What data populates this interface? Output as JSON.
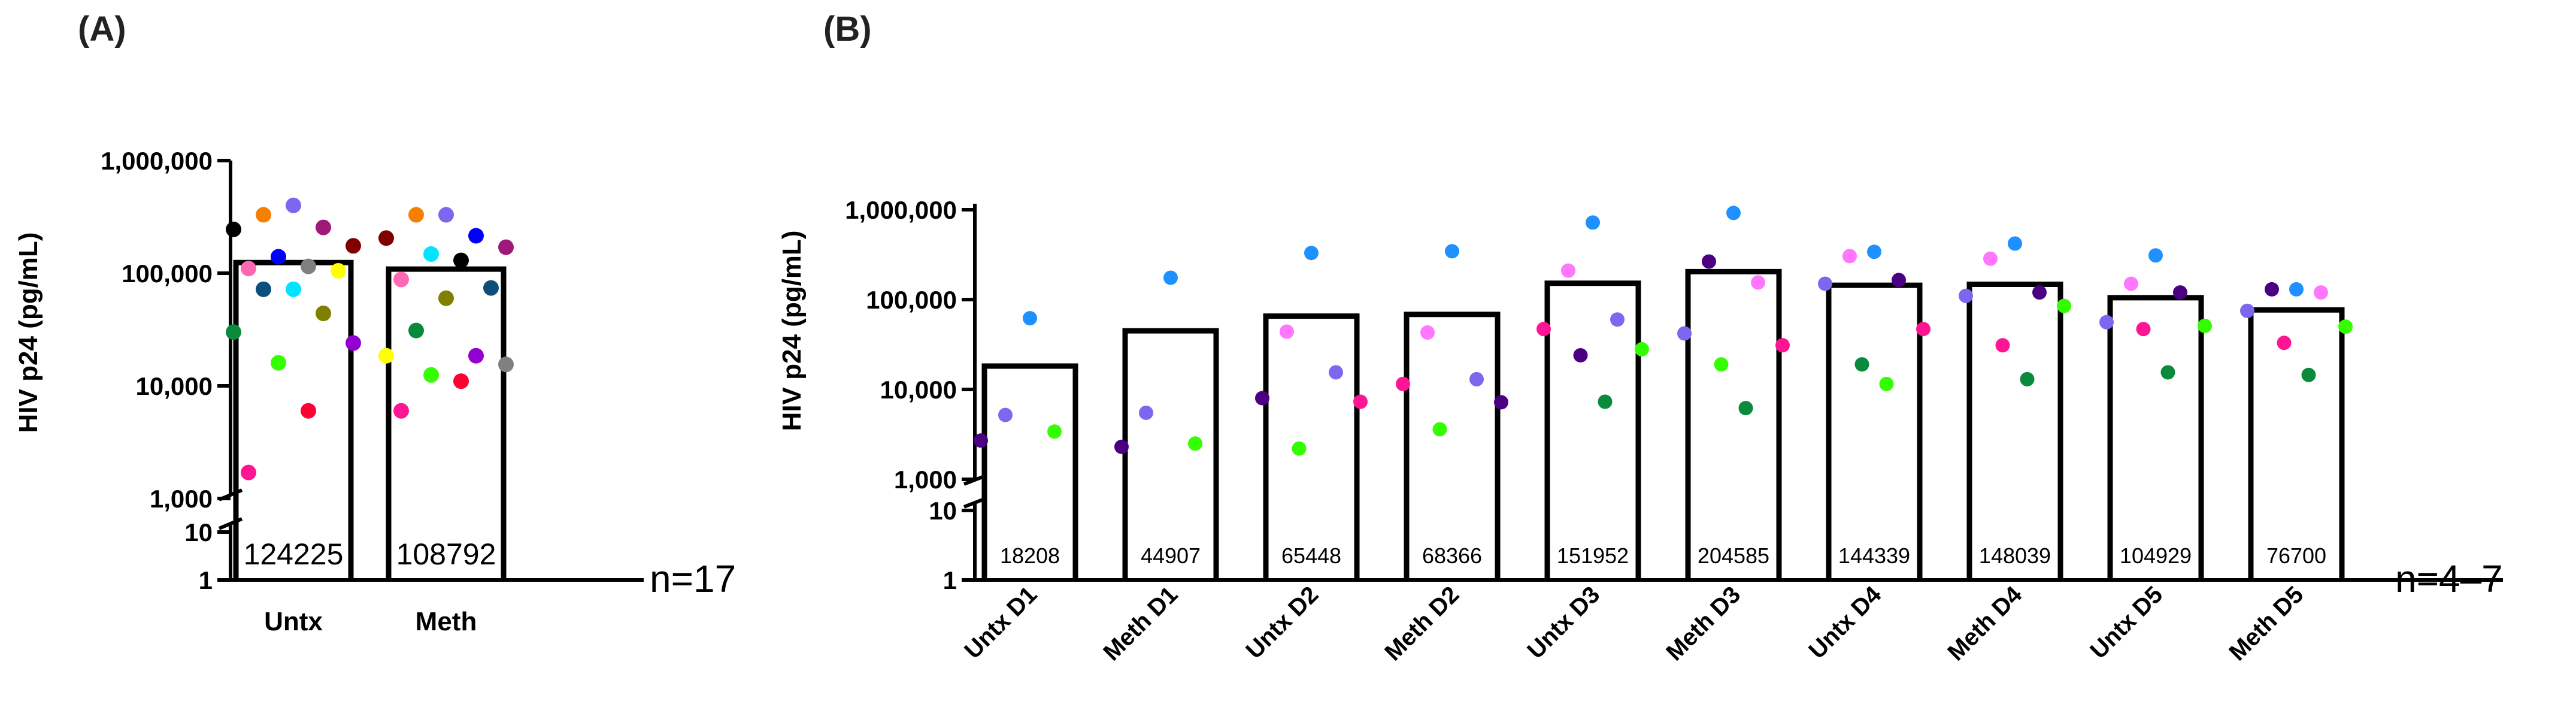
{
  "chart_data": [
    {
      "panel": "(A)",
      "type": "bar",
      "ylabel": "HIV p24 (pg/mL)",
      "yscale": "log",
      "ylim": [
        1000,
        1000000
      ],
      "yticks": [
        1000,
        10000,
        100000,
        1000000
      ],
      "ytick_labels": [
        "1,000",
        "10,000",
        "100,000",
        "1,000,000"
      ],
      "lower_ticks": [
        1,
        10
      ],
      "lower_tick_labels": [
        "1",
        "10"
      ],
      "axis_break": true,
      "categories": [
        "Untx",
        "Meth"
      ],
      "values": [
        124225,
        108792
      ],
      "value_labels": [
        "124225",
        "108792"
      ],
      "n_label": "n=17",
      "points": [
        [
          {
            "value": 330000,
            "color": "#f77f00"
          },
          {
            "value": 400000,
            "color": "#7b68ee"
          },
          {
            "value": 255000,
            "color": "#a0187a"
          },
          {
            "value": 245000,
            "color": "#000000"
          },
          {
            "value": 175000,
            "color": "#800000"
          },
          {
            "value": 140000,
            "color": "#0000ff"
          },
          {
            "value": 115000,
            "color": "#808080"
          },
          {
            "value": 110000,
            "color": "#ff69b4"
          },
          {
            "value": 105000,
            "color": "#ffff00"
          },
          {
            "value": 72000,
            "color": "#00e5ff"
          },
          {
            "value": 72000,
            "color": "#0b4f7a"
          },
          {
            "value": 44000,
            "color": "#808000"
          },
          {
            "value": 30000,
            "color": "#0a8a3c"
          },
          {
            "value": 24000,
            "color": "#9400d3"
          },
          {
            "value": 16000,
            "color": "#33ff00"
          },
          {
            "value": 6000,
            "color": "#ff0033"
          },
          {
            "value": 1700,
            "color": "#ff1493"
          }
        ],
        [
          {
            "value": 330000,
            "color": "#7b68ee"
          },
          {
            "value": 330000,
            "color": "#f77f00"
          },
          {
            "value": 215000,
            "color": "#0000ff"
          },
          {
            "value": 205000,
            "color": "#800000"
          },
          {
            "value": 170000,
            "color": "#a0187a"
          },
          {
            "value": 148000,
            "color": "#00e5ff"
          },
          {
            "value": 130000,
            "color": "#000000"
          },
          {
            "value": 88000,
            "color": "#ff69b4"
          },
          {
            "value": 74000,
            "color": "#0b4f7a"
          },
          {
            "value": 60000,
            "color": "#808000"
          },
          {
            "value": 31000,
            "color": "#0a8a3c"
          },
          {
            "value": 18500,
            "color": "#9400d3"
          },
          {
            "value": 18500,
            "color": "#ffff00"
          },
          {
            "value": 15500,
            "color": "#808080"
          },
          {
            "value": 12500,
            "color": "#33ff00"
          },
          {
            "value": 11000,
            "color": "#ff0033"
          },
          {
            "value": 6000,
            "color": "#ff1493"
          }
        ]
      ]
    },
    {
      "panel": "(B)",
      "type": "bar",
      "ylabel": "HIV p24 (pg/mL)",
      "yscale": "log",
      "ylim": [
        1000,
        1000000
      ],
      "yticks": [
        1000,
        10000,
        100000,
        1000000
      ],
      "ytick_labels": [
        "1,000",
        "10,000",
        "100,000",
        "1,000,000"
      ],
      "lower_ticks": [
        1,
        10
      ],
      "lower_tick_labels": [
        "1",
        "10"
      ],
      "axis_break": true,
      "categories": [
        "Untx D1",
        "Meth D1",
        "Untx D2",
        "Meth D2",
        "Untx D3",
        "Meth D3",
        "Untx D4",
        "Meth D4",
        "Untx D5",
        "Meth D5"
      ],
      "values": [
        18208,
        44907,
        65448,
        68366,
        151952,
        204585,
        144339,
        148039,
        104929,
        76700
      ],
      "value_labels": [
        "18208",
        "44907",
        "65448",
        "68366",
        "151952",
        "204585",
        "144339",
        "148039",
        "104929",
        "76700"
      ],
      "n_label": "n=4–7",
      "points": [
        [
          {
            "value": 62000,
            "color": "#1e90ff"
          },
          {
            "value": 5200,
            "color": "#7b68ee"
          },
          {
            "value": 3400,
            "color": "#33ff00"
          },
          {
            "value": 2700,
            "color": "#4b0082"
          }
        ],
        [
          {
            "value": 175000,
            "color": "#1e90ff"
          },
          {
            "value": 5500,
            "color": "#7b68ee"
          },
          {
            "value": 2500,
            "color": "#33ff00"
          },
          {
            "value": 2300,
            "color": "#4b0082"
          }
        ],
        [
          {
            "value": 330000,
            "color": "#1e90ff"
          },
          {
            "value": 44000,
            "color": "#ff77ff"
          },
          {
            "value": 15500,
            "color": "#7b68ee"
          },
          {
            "value": 8000,
            "color": "#4b0082"
          },
          {
            "value": 7300,
            "color": "#ff1493"
          },
          {
            "value": 2200,
            "color": "#33ff00"
          }
        ],
        [
          {
            "value": 345000,
            "color": "#1e90ff"
          },
          {
            "value": 43000,
            "color": "#ff77ff"
          },
          {
            "value": 13000,
            "color": "#7b68ee"
          },
          {
            "value": 11500,
            "color": "#ff1493"
          },
          {
            "value": 7200,
            "color": "#4b0082"
          },
          {
            "value": 3600,
            "color": "#33ff00"
          }
        ],
        [
          {
            "value": 720000,
            "color": "#1e90ff"
          },
          {
            "value": 210000,
            "color": "#ff77ff"
          },
          {
            "value": 60000,
            "color": "#7b68ee"
          },
          {
            "value": 47000,
            "color": "#ff1493"
          },
          {
            "value": 28000,
            "color": "#33ff00"
          },
          {
            "value": 24000,
            "color": "#4b0082"
          },
          {
            "value": 7300,
            "color": "#0a8a3c"
          }
        ],
        [
          {
            "value": 920000,
            "color": "#1e90ff"
          },
          {
            "value": 265000,
            "color": "#4b0082"
          },
          {
            "value": 155000,
            "color": "#ff77ff"
          },
          {
            "value": 42000,
            "color": "#7b68ee"
          },
          {
            "value": 31000,
            "color": "#ff1493"
          },
          {
            "value": 19000,
            "color": "#33ff00"
          },
          {
            "value": 6200,
            "color": "#0a8a3c"
          }
        ],
        [
          {
            "value": 340000,
            "color": "#1e90ff"
          },
          {
            "value": 305000,
            "color": "#ff77ff"
          },
          {
            "value": 165000,
            "color": "#4b0082"
          },
          {
            "value": 150000,
            "color": "#7b68ee"
          },
          {
            "value": 47000,
            "color": "#ff1493"
          },
          {
            "value": 19000,
            "color": "#0a8a3c"
          },
          {
            "value": 11500,
            "color": "#33ff00"
          }
        ],
        [
          {
            "value": 420000,
            "color": "#1e90ff"
          },
          {
            "value": 285000,
            "color": "#ff77ff"
          },
          {
            "value": 120000,
            "color": "#4b0082"
          },
          {
            "value": 110000,
            "color": "#7b68ee"
          },
          {
            "value": 85000,
            "color": "#33ff00"
          },
          {
            "value": 31000,
            "color": "#ff1493"
          },
          {
            "value": 13000,
            "color": "#0a8a3c"
          }
        ],
        [
          {
            "value": 310000,
            "color": "#1e90ff"
          },
          {
            "value": 150000,
            "color": "#ff77ff"
          },
          {
            "value": 120000,
            "color": "#4b0082"
          },
          {
            "value": 56000,
            "color": "#7b68ee"
          },
          {
            "value": 51000,
            "color": "#33ff00"
          },
          {
            "value": 47000,
            "color": "#ff1493"
          },
          {
            "value": 15500,
            "color": "#0a8a3c"
          }
        ],
        [
          {
            "value": 130000,
            "color": "#1e90ff"
          },
          {
            "value": 130000,
            "color": "#4b0082"
          },
          {
            "value": 120000,
            "color": "#ff77ff"
          },
          {
            "value": 75000,
            "color": "#7b68ee"
          },
          {
            "value": 50000,
            "color": "#33ff00"
          },
          {
            "value": 33000,
            "color": "#ff1493"
          },
          {
            "value": 14500,
            "color": "#0a8a3c"
          }
        ]
      ]
    }
  ]
}
